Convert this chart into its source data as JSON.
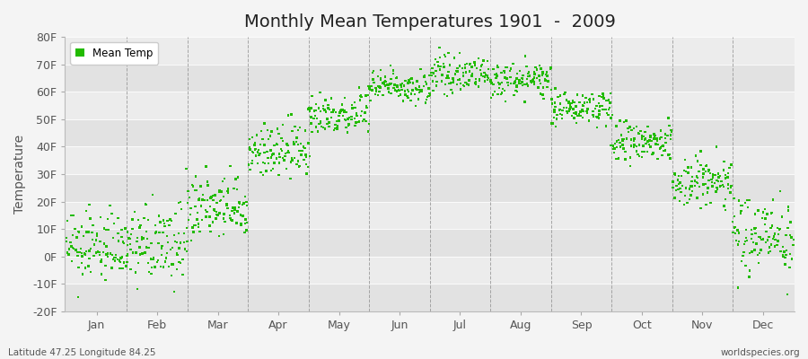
{
  "title": "Monthly Mean Temperatures 1901  -  2009",
  "ylabel": "Temperature",
  "xlabel_labels": [
    "Jan",
    "Feb",
    "Mar",
    "Apr",
    "May",
    "Jun",
    "Jul",
    "Aug",
    "Sep",
    "Oct",
    "Nov",
    "Dec"
  ],
  "legend_label": "Mean Temp",
  "bottom_left_text": "Latitude 47.25 Longitude 84.25",
  "bottom_right_text": "worldspecies.org",
  "ylim": [
    -20,
    80
  ],
  "yticks": [
    -20,
    -10,
    0,
    10,
    20,
    30,
    40,
    50,
    60,
    70,
    80
  ],
  "ytick_labels": [
    "-20F",
    "-10F",
    "0F",
    "10F",
    "20F",
    "30F",
    "40F",
    "50F",
    "60F",
    "70F",
    "80F"
  ],
  "dot_color": "#22bb00",
  "dot_size": 3,
  "fig_bg_color": "#f4f4f4",
  "plot_bg_light": "#ececec",
  "plot_bg_dark": "#e2e2e2",
  "title_fontsize": 14,
  "axis_fontsize": 10,
  "tick_fontsize": 9,
  "num_years": 109,
  "monthly_means_F": [
    3,
    4,
    17,
    38,
    52,
    62,
    66,
    64,
    54,
    41,
    27,
    8
  ],
  "monthly_stds_F": [
    6,
    7,
    6,
    5,
    4,
    3,
    3,
    3,
    3,
    4,
    5,
    7
  ],
  "monthly_trend_F": [
    0.5,
    0.5,
    0.8,
    0.6,
    0.4,
    0.3,
    0.3,
    0.3,
    0.4,
    0.5,
    0.5,
    0.5
  ]
}
